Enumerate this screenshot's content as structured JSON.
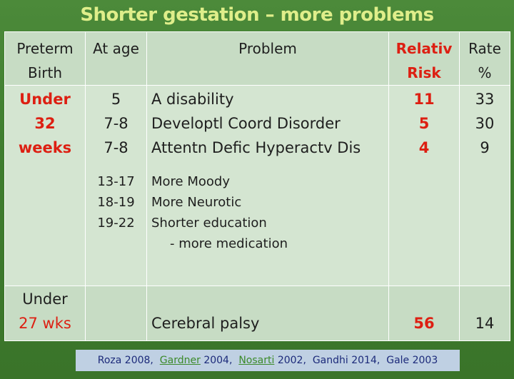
{
  "title": "Shorter gestation – more problems",
  "header": {
    "col1": [
      "Preterm",
      "Birth"
    ],
    "col2": "At age",
    "col3": "Problem",
    "col4": [
      "Relativ",
      "Risk"
    ],
    "col5": [
      "Rate",
      "%"
    ]
  },
  "row1": {
    "group": [
      "Under",
      "32",
      "weeks"
    ],
    "ages": [
      "5",
      "7-8",
      "7-8"
    ],
    "ages_later": [
      "13-17",
      "18-19",
      "19-22"
    ],
    "problems": [
      "A disability",
      "Developtl Coord Disorder",
      "Attentn Defic Hyperactv Dis"
    ],
    "problems_later": [
      "More Moody",
      "More Neurotic",
      "Shorter education",
      "- more medication"
    ],
    "risks": [
      "11",
      "5",
      "4"
    ],
    "rates": [
      "33",
      "30",
      "9"
    ]
  },
  "row2": {
    "group": [
      "Under",
      "27 wks"
    ],
    "problem": "Cerebral palsy",
    "risk": "56",
    "rate": "14"
  },
  "footer": {
    "refs": [
      "Roza 2008,",
      "Gardner",
      "2004,",
      "Nosarti",
      "2002,",
      "Gandhi 2014,",
      "Gale 2003"
    ]
  },
  "colors": {
    "background": "#3f7d2f",
    "title": "#dfee8a",
    "highlight_red": "#dd1f12",
    "cell_light": "#d4e5d1",
    "cell_dark": "#c7dcc4"
  }
}
